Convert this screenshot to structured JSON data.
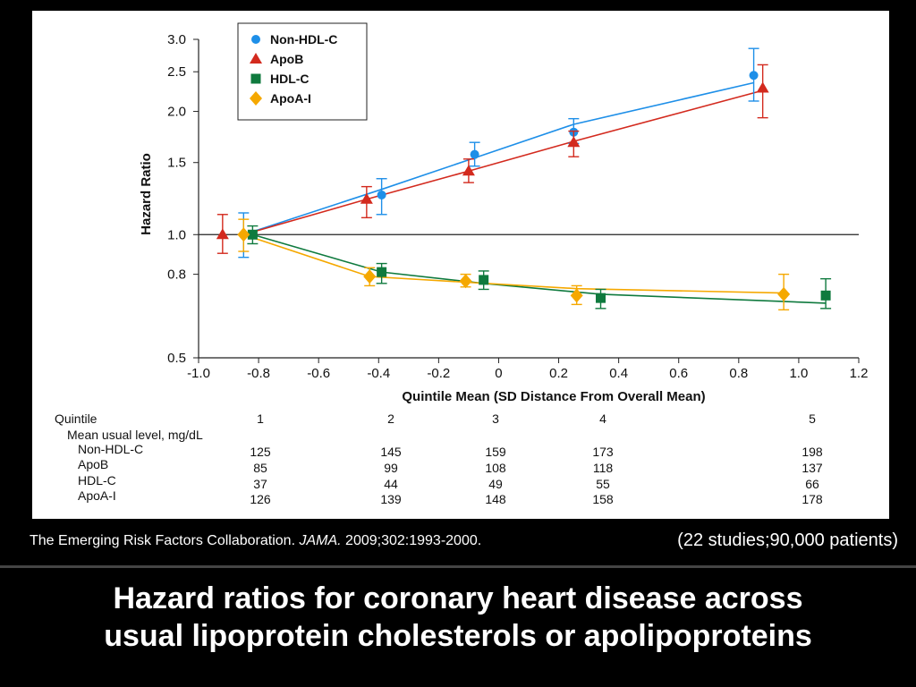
{
  "chart_data": {
    "type": "line",
    "title": "",
    "xlabel": "Quintile  Mean  (SD Distance  From  Overall  Mean)",
    "ylabel": "Hazard Ratio",
    "xlim": [
      -1.0,
      1.2
    ],
    "ylim": [
      0.5,
      3.0
    ],
    "yscale": "log",
    "x_ticks": [
      "-1.0",
      "-0.8",
      "-0.6",
      "-0.4",
      "-0.2",
      "0",
      "0.2",
      "0.4",
      "0.6",
      "0.8",
      "1.0",
      "1.2"
    ],
    "y_ticks": [
      {
        "value": 0.5,
        "label": "0.5"
      },
      {
        "value": 0.8,
        "label": "0.8"
      },
      {
        "value": 1.0,
        "label": "1.0"
      },
      {
        "value": 1.5,
        "label": "1.5"
      },
      {
        "value": 2.0,
        "label": "2.0"
      },
      {
        "value": 2.5,
        "label": "2.5"
      },
      {
        "value": 3.0,
        "label": "3.0"
      }
    ],
    "reference_line": 1.0,
    "legend_position": "top-left",
    "series": [
      {
        "name": "Non-HDL-C",
        "color": "#1e8fe8",
        "marker": "circle",
        "points": [
          {
            "x": -0.85,
            "y": 1.0,
            "lo": 0.88,
            "hi": 1.13
          },
          {
            "x": -0.39,
            "y": 1.25,
            "lo": 1.12,
            "hi": 1.37
          },
          {
            "x": -0.08,
            "y": 1.57,
            "lo": 1.47,
            "hi": 1.68
          },
          {
            "x": 0.25,
            "y": 1.78,
            "lo": 1.67,
            "hi": 1.92
          },
          {
            "x": 0.85,
            "y": 2.45,
            "lo": 2.12,
            "hi": 2.85
          }
        ],
        "fit": [
          [
            -0.85,
            1.0
          ],
          [
            -0.39,
            1.29
          ],
          [
            -0.08,
            1.54
          ],
          [
            0.25,
            1.86
          ],
          [
            0.85,
            2.35
          ]
        ]
      },
      {
        "name": "ApoB",
        "color": "#d32a1e",
        "marker": "triangle",
        "points": [
          {
            "x": -0.92,
            "y": 1.0,
            "lo": 0.9,
            "hi": 1.12
          },
          {
            "x": -0.44,
            "y": 1.22,
            "lo": 1.1,
            "hi": 1.31
          },
          {
            "x": -0.1,
            "y": 1.43,
            "lo": 1.34,
            "hi": 1.53
          },
          {
            "x": 0.25,
            "y": 1.68,
            "lo": 1.55,
            "hi": 1.79
          },
          {
            "x": 0.88,
            "y": 2.28,
            "lo": 1.93,
            "hi": 2.6
          }
        ],
        "fit": [
          [
            -0.85,
            1.0
          ],
          [
            -0.44,
            1.22
          ],
          [
            -0.1,
            1.43
          ],
          [
            0.25,
            1.69
          ],
          [
            0.88,
            2.25
          ]
        ]
      },
      {
        "name": "HDL-C",
        "color": "#0f7a3e",
        "marker": "square",
        "points": [
          {
            "x": -0.82,
            "y": 1.0,
            "lo": 0.95,
            "hi": 1.05
          },
          {
            "x": -0.39,
            "y": 0.81,
            "lo": 0.76,
            "hi": 0.85
          },
          {
            "x": -0.05,
            "y": 0.775,
            "lo": 0.735,
            "hi": 0.815
          },
          {
            "x": 0.34,
            "y": 0.7,
            "lo": 0.66,
            "hi": 0.735
          },
          {
            "x": 1.09,
            "y": 0.71,
            "lo": 0.66,
            "hi": 0.78
          }
        ],
        "fit": [
          [
            -0.82,
            1.0
          ],
          [
            -0.39,
            0.81
          ],
          [
            -0.05,
            0.76
          ],
          [
            0.34,
            0.715
          ],
          [
            1.09,
            0.68
          ]
        ]
      },
      {
        "name": "ApoA-I",
        "color": "#f5a800",
        "marker": "diamond",
        "points": [
          {
            "x": -0.85,
            "y": 1.0,
            "lo": 0.91,
            "hi": 1.09
          },
          {
            "x": -0.43,
            "y": 0.79,
            "lo": 0.75,
            "hi": 0.83
          },
          {
            "x": -0.11,
            "y": 0.77,
            "lo": 0.745,
            "hi": 0.8
          },
          {
            "x": 0.26,
            "y": 0.71,
            "lo": 0.675,
            "hi": 0.75
          },
          {
            "x": 0.95,
            "y": 0.715,
            "lo": 0.655,
            "hi": 0.8
          }
        ],
        "fit": [
          [
            -0.85,
            1.0
          ],
          [
            -0.43,
            0.79
          ],
          [
            -0.11,
            0.765
          ],
          [
            0.26,
            0.738
          ],
          [
            0.95,
            0.72
          ]
        ]
      }
    ]
  },
  "table": {
    "quintile_label": "Quintile",
    "subheader": "Mean usual level, mg/dL",
    "quintiles": [
      "1",
      "2",
      "3",
      "4",
      "5"
    ],
    "rows": [
      {
        "label": "Non-HDL-C",
        "values": [
          "125",
          "145",
          "159",
          "173",
          "198"
        ]
      },
      {
        "label": "ApoB",
        "values": [
          "85",
          "99",
          "108",
          "118",
          "137"
        ]
      },
      {
        "label": "HDL-C",
        "values": [
          "37",
          "44",
          "49",
          "55",
          "66"
        ]
      },
      {
        "label": "ApoA-I",
        "values": [
          "126",
          "139",
          "148",
          "158",
          "178"
        ]
      }
    ]
  },
  "citation": {
    "authors": "The Emerging Risk Factors Collaboration.",
    "journal": "JAMA.",
    "details": "2009;302:1993-2000."
  },
  "studies_note": "(22 studies;90,000 patients)",
  "slide_title": {
    "line1": "Hazard ratios for coronary heart disease across",
    "line2": "usual lipoprotein cholesterols or apolipoproteins"
  }
}
